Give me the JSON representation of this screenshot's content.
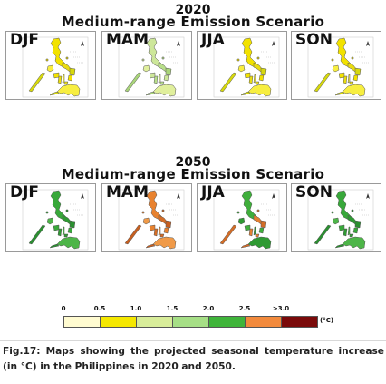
{
  "block_2020": {
    "year": "2020",
    "scenario": "Medium-range Emission Scenario",
    "panels": [
      {
        "season": "DJF"
      },
      {
        "season": "MAM"
      },
      {
        "season": "JJA"
      },
      {
        "season": "SON"
      }
    ]
  },
  "block_2050": {
    "year": "2050",
    "scenario": "Medium-range Emission Scenario",
    "panels": [
      {
        "season": "DJF"
      },
      {
        "season": "MAM"
      },
      {
        "season": "JJA"
      },
      {
        "season": "SON"
      }
    ]
  },
  "legend": {
    "ticks": [
      "0",
      "0.5",
      "1.0",
      "1.5",
      "2.0",
      "2.5",
      ">3.0"
    ],
    "unit": "(°C)",
    "colors": [
      "#fffbd0",
      "#f5e800",
      "#d8ed9a",
      "#a6df86",
      "#3fb43a",
      "#f28a3c",
      "#e82410",
      "#7a0a0a"
    ]
  },
  "caption": {
    "line1": "Fig.17: Maps showing the projected seasonal temperature increase",
    "line2": "(in °C) in the Philippines in 2020 and 2050."
  }
}
